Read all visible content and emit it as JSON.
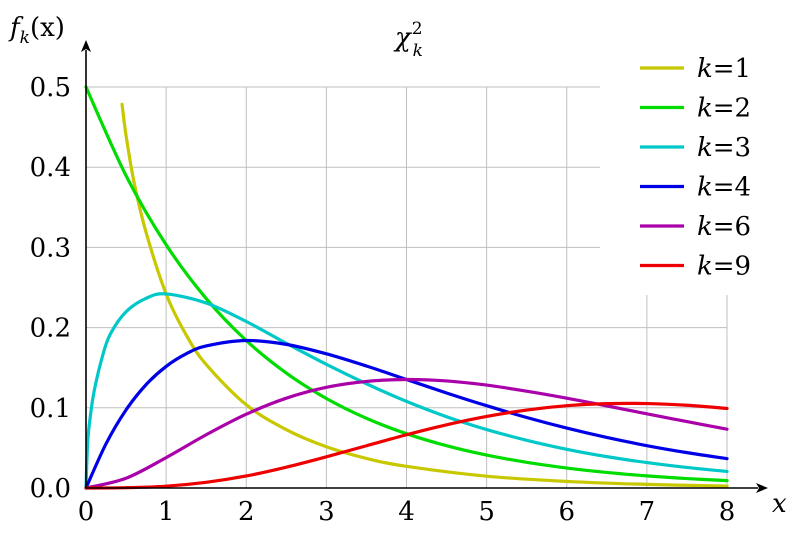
{
  "chart_data": {
    "type": "line",
    "title": {
      "base": "χ",
      "sup": "2",
      "sub": "k"
    },
    "xlabel": "x",
    "ylabel": {
      "f": "f",
      "sub": "k",
      "arg": "(x)"
    },
    "xlim": [
      0,
      8
    ],
    "ylim": [
      0,
      0.5
    ],
    "xticks": [
      "0",
      "1",
      "2",
      "3",
      "4",
      "5",
      "6",
      "7",
      "8"
    ],
    "yticks": [
      "0.0",
      "0.1",
      "0.2",
      "0.3",
      "0.4",
      "0.5"
    ],
    "grid": true,
    "legend_position": "top-right",
    "series": [
      {
        "name": "k=1",
        "k": 1,
        "color": "#c8c800",
        "x": [
          0.45,
          0.5,
          0.6,
          0.75,
          1.0,
          1.25,
          1.5,
          2.0,
          2.5,
          3.0,
          3.5,
          4.0,
          5.0,
          6.0,
          7.0,
          8.0
        ],
        "y": [
          0.4784,
          0.4394,
          0.3811,
          0.3186,
          0.242,
          0.1909,
          0.1539,
          0.1038,
          0.0727,
          0.0514,
          0.0369,
          0.027,
          0.0147,
          0.0082,
          0.0045,
          0.0024
        ]
      },
      {
        "name": "k=2",
        "k": 2,
        "color": "#00dc00",
        "x": [
          0,
          0.5,
          1.0,
          1.5,
          2.0,
          2.5,
          3.0,
          3.5,
          4.0,
          4.5,
          5.0,
          5.5,
          6.0,
          6.5,
          7.0,
          7.5,
          8.0
        ],
        "y": [
          0.5,
          0.3894,
          0.3033,
          0.2362,
          0.1839,
          0.1433,
          0.1116,
          0.0869,
          0.0677,
          0.0527,
          0.041,
          0.032,
          0.0249,
          0.0194,
          0.0151,
          0.0118,
          0.0092
        ]
      },
      {
        "name": "k=3",
        "k": 3,
        "color": "#00c8c8",
        "x": [
          0,
          0.02,
          0.05,
          0.1,
          0.2,
          0.3,
          0.5,
          0.75,
          1.0,
          1.5,
          2.0,
          2.5,
          3.0,
          3.5,
          4.0,
          4.5,
          5.0,
          5.5,
          6.0,
          6.5,
          7.0,
          7.5,
          8.0
        ],
        "y": [
          0,
          0.0555,
          0.0863,
          0.12,
          0.1623,
          0.1912,
          0.2197,
          0.2365,
          0.242,
          0.2307,
          0.2076,
          0.1804,
          0.1542,
          0.13,
          0.108,
          0.0889,
          0.0729,
          0.0595,
          0.0483,
          0.0391,
          0.0317,
          0.0256,
          0.0206
        ]
      },
      {
        "name": "k=4",
        "k": 4,
        "color": "#0000e6",
        "x": [
          0,
          0.25,
          0.5,
          0.75,
          1.0,
          1.25,
          1.5,
          2.0,
          2.5,
          3.0,
          3.5,
          4.0,
          4.5,
          5.0,
          5.5,
          6.0,
          6.5,
          7.0,
          7.5,
          8.0
        ],
        "y": [
          0,
          0.0551,
          0.0974,
          0.1289,
          0.1516,
          0.1673,
          0.1771,
          0.1839,
          0.1791,
          0.1673,
          0.1521,
          0.1353,
          0.1185,
          0.1026,
          0.0879,
          0.0747,
          0.063,
          0.0528,
          0.0441,
          0.0366
        ]
      },
      {
        "name": "k=6",
        "k": 6,
        "color": "#aa00aa",
        "x": [
          0,
          0.5,
          1.0,
          1.5,
          2.0,
          2.5,
          3.0,
          3.5,
          4.0,
          4.5,
          5.0,
          5.5,
          6.0,
          6.5,
          7.0,
          7.5,
          8.0
        ],
        "y": [
          0,
          0.0122,
          0.0379,
          0.0664,
          0.092,
          0.112,
          0.1255,
          0.1329,
          0.1353,
          0.1335,
          0.1283,
          0.1207,
          0.112,
          0.1024,
          0.0925,
          0.0828,
          0.0733
        ]
      },
      {
        "name": "k=9",
        "k": 9,
        "color": "#ee0000",
        "x": [
          0,
          0.5,
          1.0,
          1.5,
          2.0,
          2.5,
          3.0,
          3.5,
          4.0,
          4.5,
          5.0,
          5.5,
          6.0,
          6.5,
          7.0,
          7.5,
          8.0
        ],
        "y": [
          0,
          0.0004,
          0.0023,
          0.0071,
          0.015,
          0.026,
          0.0389,
          0.0527,
          0.0664,
          0.0788,
          0.0892,
          0.0972,
          0.1026,
          0.1052,
          0.1053,
          0.1032,
          0.0992
        ]
      }
    ]
  }
}
